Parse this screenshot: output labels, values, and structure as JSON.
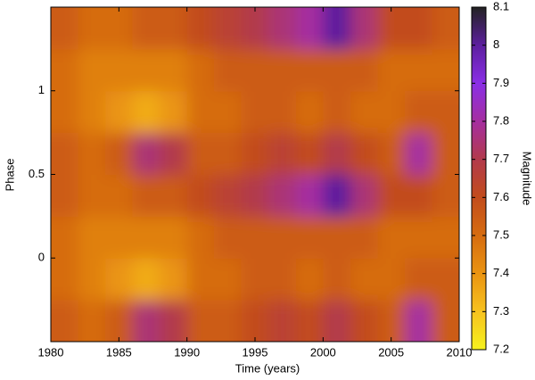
{
  "chart_data": {
    "type": "heatmap",
    "xlabel": "Time (years)",
    "ylabel": "Phase",
    "colorbar_label": "Magnitude",
    "x": [
      1981,
      1983,
      1985,
      1987,
      1989,
      1991,
      1993,
      1995,
      1997,
      1999,
      2001,
      2003,
      2005,
      2007,
      2009
    ],
    "y": [
      -0.375,
      -0.125,
      0.125,
      0.375,
      0.625,
      0.875,
      1.125,
      1.375
    ],
    "z": [
      [
        7.55,
        7.5,
        7.55,
        7.75,
        7.7,
        7.55,
        7.55,
        7.6,
        7.65,
        7.6,
        7.7,
        7.6,
        7.55,
        7.8,
        7.55
      ],
      [
        7.5,
        7.45,
        7.4,
        7.35,
        7.4,
        7.5,
        7.5,
        7.55,
        7.55,
        7.5,
        7.55,
        7.5,
        7.5,
        7.55,
        7.55
      ],
      [
        7.5,
        7.45,
        7.45,
        7.45,
        7.45,
        7.5,
        7.55,
        7.55,
        7.55,
        7.55,
        7.55,
        7.55,
        7.5,
        7.5,
        7.5
      ],
      [
        7.55,
        7.5,
        7.5,
        7.55,
        7.55,
        7.6,
        7.65,
        7.7,
        7.75,
        7.8,
        8.0,
        7.75,
        7.6,
        7.6,
        7.55
      ],
      [
        7.55,
        7.5,
        7.55,
        7.75,
        7.7,
        7.55,
        7.55,
        7.6,
        7.65,
        7.6,
        7.7,
        7.6,
        7.55,
        7.8,
        7.55
      ],
      [
        7.5,
        7.45,
        7.4,
        7.35,
        7.4,
        7.5,
        7.5,
        7.55,
        7.55,
        7.5,
        7.55,
        7.5,
        7.5,
        7.55,
        7.55
      ],
      [
        7.5,
        7.45,
        7.45,
        7.45,
        7.45,
        7.5,
        7.55,
        7.55,
        7.55,
        7.55,
        7.55,
        7.55,
        7.5,
        7.5,
        7.5
      ],
      [
        7.55,
        7.5,
        7.5,
        7.55,
        7.55,
        7.6,
        7.65,
        7.7,
        7.75,
        7.8,
        8.0,
        7.75,
        7.6,
        7.6,
        7.55
      ]
    ],
    "xlim": [
      1980,
      2010
    ],
    "xticks": [
      1980,
      1985,
      1990,
      1995,
      2000,
      2005,
      2010
    ],
    "ylim": [
      -0.5,
      1.5
    ],
    "yticks": [
      0,
      0.5,
      1
    ],
    "zlim": [
      7.2,
      8.1
    ],
    "zticks": [
      7.2,
      7.3,
      7.4,
      7.5,
      7.6,
      7.7,
      7.8,
      7.9,
      8,
      8.1
    ],
    "colormap": [
      "#f6f21e",
      "#f7c21f",
      "#ea9412",
      "#d66c10",
      "#c24c1c",
      "#b23a4c",
      "#a52ea0",
      "#8a2ee6",
      "#5c1f9e",
      "#222222"
    ]
  }
}
